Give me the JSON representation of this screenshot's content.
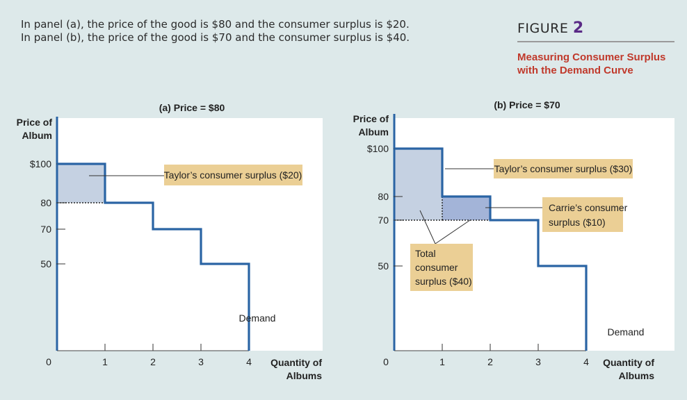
{
  "caption": {
    "line1": "In panel (a), the price of the good is $80 and the consumer surplus is $20.",
    "line2": "In panel (b), the price of the good is $70 and the consumer surplus is $40."
  },
  "figure": {
    "label": "FIGURE",
    "number": "2",
    "title_line1": "Measuring Consumer Surplus",
    "title_line2": "with the Demand Curve"
  },
  "colors": {
    "background": "#dde9ea",
    "panel": "#ffffff",
    "demand": "#2a64a4",
    "surplus_light": "#c5d1e2",
    "surplus_dark": "#a3b4d8",
    "callout": "#ebcf95",
    "accent_title": "#c0392b",
    "accent_number": "#5a2a86"
  },
  "chart_data": [
    {
      "type": "line",
      "panel": "a",
      "title": "(a) Price = $80",
      "xlabel": "Quantity of Albums",
      "ylabel": "Price of Album",
      "x_ticks": [
        "0",
        "1",
        "2",
        "3",
        "4"
      ],
      "y_ticks": [
        "$100",
        "80",
        "70",
        "50"
      ],
      "y_tick_values": [
        100,
        80,
        70,
        50
      ],
      "demand_label": "Demand",
      "demand_steps": [
        {
          "from_q": 0,
          "to_q": 1,
          "price": 100
        },
        {
          "from_q": 1,
          "to_q": 2,
          "price": 80
        },
        {
          "from_q": 2,
          "to_q": 3,
          "price": 70
        },
        {
          "from_q": 3,
          "to_q": 4,
          "price": 50
        }
      ],
      "market_price": 80,
      "surplus_areas": [
        {
          "from_q": 0,
          "to_q": 1,
          "low": 80,
          "high": 100,
          "shade": "light"
        }
      ],
      "annotations": [
        {
          "text": "Taylor’s consumer surplus ($20)"
        }
      ]
    },
    {
      "type": "line",
      "panel": "b",
      "title": "(b) Price = $70",
      "xlabel": "Quantity of Albums",
      "ylabel": "Price of Album",
      "x_ticks": [
        "0",
        "1",
        "2",
        "3",
        "4"
      ],
      "y_ticks": [
        "$100",
        "80",
        "70",
        "50"
      ],
      "y_tick_values": [
        100,
        80,
        70,
        50
      ],
      "demand_label": "Demand",
      "demand_steps": [
        {
          "from_q": 0,
          "to_q": 1,
          "price": 100
        },
        {
          "from_q": 1,
          "to_q": 2,
          "price": 80
        },
        {
          "from_q": 2,
          "to_q": 3,
          "price": 70
        },
        {
          "from_q": 3,
          "to_q": 4,
          "price": 50
        }
      ],
      "market_price": 70,
      "surplus_areas": [
        {
          "from_q": 0,
          "to_q": 1,
          "low": 70,
          "high": 100,
          "shade": "light"
        },
        {
          "from_q": 1,
          "to_q": 2,
          "low": 70,
          "high": 80,
          "shade": "dark"
        }
      ],
      "annotations": [
        {
          "text": "Taylor’s consumer surplus ($30)"
        },
        {
          "lines": [
            "Carrie’s consumer",
            "surplus ($10)"
          ]
        },
        {
          "lines": [
            "Total",
            "consumer",
            "surplus ($40)"
          ]
        }
      ]
    }
  ]
}
